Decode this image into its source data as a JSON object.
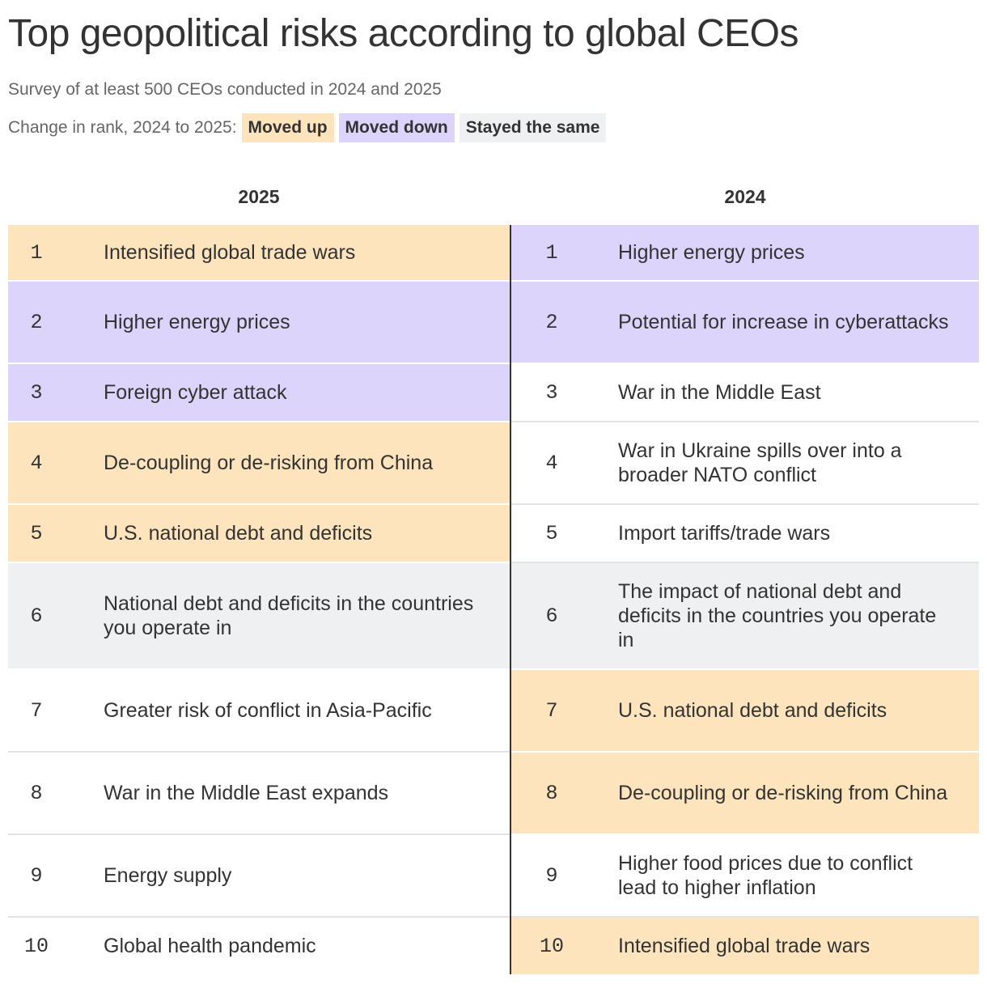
{
  "title": "Top geopolitical risks according to global CEOs",
  "subtitle": "Survey of at least 500 CEOs conducted in 2024 and 2025",
  "legend": {
    "label": "Change in rank, 2024 to 2025:",
    "items": [
      {
        "label": "Moved up",
        "color": "#fde4bc"
      },
      {
        "label": "Moved down",
        "color": "#ddd4fb"
      },
      {
        "label": "Stayed the same",
        "color": "#eff0f2"
      }
    ]
  },
  "chart_data": {
    "type": "table",
    "columns": [
      {
        "header": "2025",
        "rows": [
          {
            "rank": "1",
            "risk": "Intensified global trade wars",
            "change": "up"
          },
          {
            "rank": "2",
            "risk": "Higher energy prices",
            "change": "down"
          },
          {
            "rank": "3",
            "risk": "Foreign cyber attack",
            "change": "down"
          },
          {
            "rank": "4",
            "risk": "De-coupling or de-risking from China",
            "change": "up"
          },
          {
            "rank": "5",
            "risk": "U.S. national debt and deficits",
            "change": "up"
          },
          {
            "rank": "6",
            "risk": "National debt and deficits in the countries you operate in",
            "change": "same"
          },
          {
            "rank": "7",
            "risk": "Greater risk of conflict in Asia-Pacific",
            "change": "none"
          },
          {
            "rank": "8",
            "risk": "War in the Middle East expands",
            "change": "none"
          },
          {
            "rank": "9",
            "risk": "Energy supply",
            "change": "none"
          },
          {
            "rank": "10",
            "risk": "Global health pandemic",
            "change": "none"
          }
        ]
      },
      {
        "header": "2024",
        "rows": [
          {
            "rank": "1",
            "risk": "Higher energy prices",
            "change": "down"
          },
          {
            "rank": "2",
            "risk": "Potential for increase in cyberattacks",
            "change": "down"
          },
          {
            "rank": "3",
            "risk": "War in the Middle East",
            "change": "none"
          },
          {
            "rank": "4",
            "risk": "War in Ukraine spills over into a broader NATO conflict",
            "change": "none"
          },
          {
            "rank": "5",
            "risk": "Import tariffs/trade wars",
            "change": "none"
          },
          {
            "rank": "6",
            "risk": "The impact of national debt and deficits in the countries you operate in",
            "change": "same"
          },
          {
            "rank": "7",
            "risk": "U.S. national debt and deficits",
            "change": "up"
          },
          {
            "rank": "8",
            "risk": "De-coupling or de-risking from China",
            "change": "up"
          },
          {
            "rank": "9",
            "risk": "Higher food prices due to conflict lead to higher inflation",
            "change": "none"
          },
          {
            "rank": "10",
            "risk": "Intensified global trade wars",
            "change": "up"
          }
        ]
      }
    ]
  }
}
